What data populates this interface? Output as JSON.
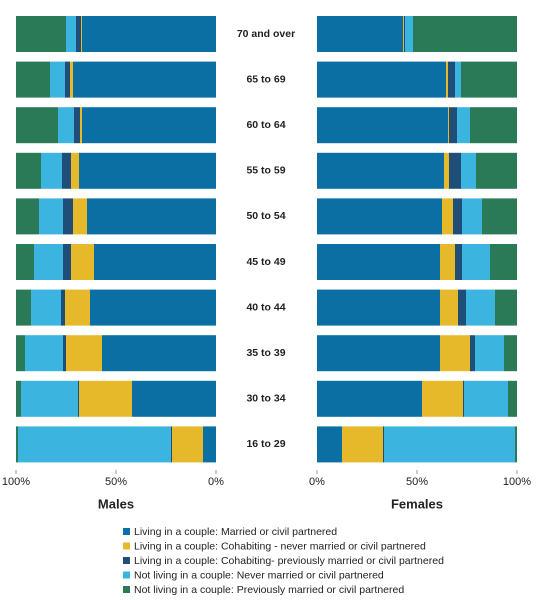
{
  "chart_data": {
    "type": "bar",
    "orientation": "horizontal",
    "stacked": true,
    "categories": [
      "70 and over",
      "65 to 69",
      "60 to 64",
      "55 to 59",
      "50 to 54",
      "45 to 49",
      "40 to 44",
      "35 to 39",
      "30 to 34",
      "16 to 29"
    ],
    "series": [
      {
        "name": "Living in a couple: Married or civil partnered",
        "color": "#0b6fa4"
      },
      {
        "name": "Living in a couple: Cohabiting - never married or civil partnered",
        "color": "#e6b92a"
      },
      {
        "name": "Living in a couple: Cohabiting- previously married or civil partnered",
        "color": "#1f4e79"
      },
      {
        "name": "Not living in a couple: Never married or civil partnered",
        "color": "#3cb4e0"
      },
      {
        "name": "Not living in a couple: Previously married or civil partnered",
        "color": "#2a7a58"
      }
    ],
    "panels": [
      {
        "title": "Males",
        "xlim": [
          100,
          0
        ],
        "xticks": [
          {
            "value": 100,
            "label": "100%"
          },
          {
            "value": 50,
            "label": "50%"
          },
          {
            "value": 0,
            "label": "0%"
          }
        ],
        "series": [
          {
            "values": [
              67,
              71.5,
              67,
              68.5,
              64.5,
              61,
              63,
              57,
              42,
              6.5
            ]
          },
          {
            "values": [
              0.5,
              1.5,
              1,
              4,
              7,
              11.5,
              12.5,
              18,
              26.5,
              15.5
            ]
          },
          {
            "values": [
              2.5,
              2.5,
              3,
              4.5,
              5,
              4,
              2,
              1.5,
              0.5,
              0.5
            ]
          },
          {
            "values": [
              5,
              7.5,
              8,
              10.5,
              12,
              14.5,
              15,
              19,
              28.5,
              76.5
            ]
          },
          {
            "values": [
              25,
              17,
              21,
              12.5,
              11.5,
              9,
              7.5,
              4.5,
              2.5,
              1
            ]
          }
        ]
      },
      {
        "title": "Females",
        "xlim": [
          0,
          100
        ],
        "xticks": [
          {
            "value": 0,
            "label": "0%"
          },
          {
            "value": 50,
            "label": "50%"
          },
          {
            "value": 100,
            "label": "100%"
          }
        ],
        "series": [
          {
            "values": [
              43,
              64.5,
              65.5,
              63.5,
              62.5,
              61.5,
              61.5,
              61.5,
              52.5,
              12.5
            ]
          },
          {
            "values": [
              0.5,
              1,
              0.5,
              2.5,
              5.5,
              7.5,
              9,
              15,
              20.5,
              20.5
            ]
          },
          {
            "values": [
              0.5,
              3.5,
              4,
              6,
              4.5,
              3.5,
              4,
              2.5,
              0.5,
              0.5
            ]
          },
          {
            "values": [
              4,
              3,
              6.5,
              7.5,
              10,
              14,
              14.5,
              14.5,
              22,
              65.5
            ]
          },
          {
            "values": [
              52,
              28,
              23.5,
              20.5,
              17.5,
              13.5,
              11,
              6.5,
              4.5,
              1
            ]
          }
        ]
      }
    ]
  }
}
